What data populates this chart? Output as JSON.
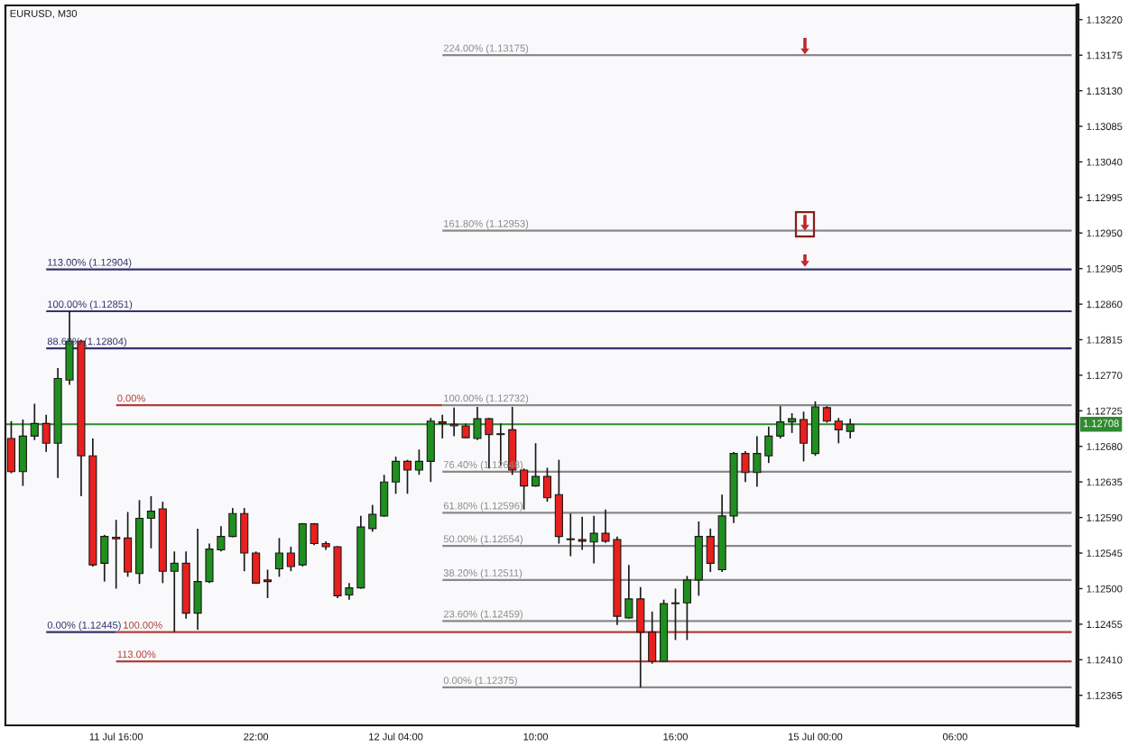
{
  "chart_data": {
    "type": "candlestick",
    "title": "EURUSD, M30",
    "categories": [
      null,
      null,
      null,
      null,
      null,
      null,
      null,
      null,
      null,
      "11 Jul 16:00",
      null,
      null,
      null,
      null,
      null,
      null,
      null,
      null,
      null,
      null,
      null,
      "22:00",
      null,
      null,
      null,
      null,
      null,
      null,
      null,
      null,
      null,
      null,
      null,
      "12 Jul 04:00",
      null,
      null,
      null,
      null,
      null,
      null,
      null,
      null,
      null,
      null,
      null,
      "10:00",
      null,
      null,
      null,
      null,
      null,
      null,
      null,
      null,
      null,
      null,
      null,
      "16:00",
      null,
      null,
      null,
      null,
      null,
      null,
      null,
      null,
      null,
      null,
      null,
      "15 Jul 00:00",
      null,
      null,
      null,
      null,
      null,
      null,
      null,
      null,
      null,
      null,
      null,
      "06:00",
      null,
      null,
      null,
      null,
      null,
      null,
      null,
      null,
      null,
      null
    ],
    "ohlc": [
      [
        1.1269,
        1.12712,
        1.12646,
        1.12648
      ],
      [
        1.12648,
        1.12714,
        1.1263,
        1.12693
      ],
      [
        1.12693,
        1.12734,
        1.12688,
        1.12709
      ],
      [
        1.12709,
        1.1272,
        1.12673,
        1.12684
      ],
      [
        1.12684,
        1.12779,
        1.1264,
        1.12766
      ],
      [
        1.12764,
        1.12851,
        1.12758,
        1.12813
      ],
      [
        1.12813,
        1.12815,
        1.12617,
        1.12668
      ],
      [
        1.12668,
        1.1269,
        1.12528,
        1.1253
      ],
      [
        1.12532,
        1.12568,
        1.12509,
        1.12566
      ],
      [
        1.12565,
        1.12587,
        1.125,
        1.12563
      ],
      [
        1.12564,
        1.12597,
        1.12515,
        1.12521
      ],
      [
        1.12519,
        1.12612,
        1.12506,
        1.12589
      ],
      [
        1.12589,
        1.12617,
        1.12551,
        1.12598
      ],
      [
        1.12601,
        1.1261,
        1.12507,
        1.12522
      ],
      [
        1.12522,
        1.12547,
        1.12445,
        1.12532
      ],
      [
        1.12532,
        1.12547,
        1.12462,
        1.12469
      ],
      [
        1.12469,
        1.12576,
        1.12448,
        1.12509
      ],
      [
        1.12509,
        1.12557,
        1.12507,
        1.1255
      ],
      [
        1.12549,
        1.12579,
        1.12547,
        1.12566
      ],
      [
        1.12566,
        1.12602,
        1.12565,
        1.12595
      ],
      [
        1.12595,
        1.12602,
        1.12522,
        1.12545
      ],
      [
        1.12545,
        1.12547,
        1.12506,
        1.12507
      ],
      [
        1.12511,
        1.12524,
        1.12488,
        1.12509
      ],
      [
        1.12525,
        1.12564,
        1.12515,
        1.12545
      ],
      [
        1.12545,
        1.12553,
        1.12522,
        1.12528
      ],
      [
        1.1253,
        1.12583,
        1.12528,
        1.12582
      ],
      [
        1.12582,
        1.12583,
        1.12555,
        1.12557
      ],
      [
        1.12557,
        1.1256,
        1.12549,
        1.12553
      ],
      [
        1.12553,
        1.12554,
        1.12488,
        1.12491
      ],
      [
        1.12492,
        1.12507,
        1.12486,
        1.12501
      ],
      [
        1.12501,
        1.12592,
        1.125,
        1.12578
      ],
      [
        1.12576,
        1.12606,
        1.12572,
        1.12594
      ],
      [
        1.12592,
        1.12644,
        1.12591,
        1.12635
      ],
      [
        1.12635,
        1.12667,
        1.1262,
        1.12661
      ],
      [
        1.12661,
        1.12663,
        1.1262,
        1.1265
      ],
      [
        1.1265,
        1.12676,
        1.12644,
        1.12661
      ],
      [
        1.12661,
        1.12716,
        1.12635,
        1.12712
      ],
      [
        1.12711,
        1.1272,
        1.1269,
        1.12709
      ],
      [
        1.12708,
        1.12729,
        1.12693,
        1.12706
      ],
      [
        1.12706,
        1.12709,
        1.1269,
        1.12691
      ],
      [
        1.1269,
        1.1273,
        1.12688,
        1.12715
      ],
      [
        1.12715,
        1.12716,
        1.12652,
        1.12695
      ],
      [
        1.12696,
        1.12709,
        1.12655,
        1.12695
      ],
      [
        1.12701,
        1.1273,
        1.12644,
        1.1265
      ],
      [
        1.1265,
        1.12652,
        1.126,
        1.1263
      ],
      [
        1.1263,
        1.12684,
        1.12629,
        1.12642
      ],
      [
        1.12642,
        1.12653,
        1.1261,
        1.12615
      ],
      [
        1.12619,
        1.12663,
        1.12557,
        1.12566
      ],
      [
        1.12563,
        1.12595,
        1.12541,
        1.12562
      ],
      [
        1.12562,
        1.12591,
        1.12549,
        1.1256
      ],
      [
        1.12559,
        1.12592,
        1.12532,
        1.1257
      ],
      [
        1.1257,
        1.126,
        1.12558,
        1.1256
      ],
      [
        1.12562,
        1.12566,
        1.12454,
        1.12465
      ],
      [
        1.12463,
        1.1253,
        1.12462,
        1.12487
      ],
      [
        1.12487,
        1.12502,
        1.12375,
        1.12445
      ],
      [
        1.12445,
        1.12471,
        1.12405,
        1.12408
      ],
      [
        1.12408,
        1.12486,
        1.12407,
        1.12481
      ],
      [
        1.12482,
        1.125,
        1.12435,
        1.12481
      ],
      [
        1.12482,
        1.12516,
        1.12435,
        1.12511
      ],
      [
        1.12511,
        1.12585,
        1.12491,
        1.12566
      ],
      [
        1.12566,
        1.12576,
        1.12521,
        1.12532
      ],
      [
        1.12524,
        1.12619,
        1.12521,
        1.12592
      ],
      [
        1.12592,
        1.12673,
        1.12583,
        1.12671
      ],
      [
        1.12671,
        1.12674,
        1.12635,
        1.12647
      ],
      [
        1.12647,
        1.12693,
        1.12629,
        1.12671
      ],
      [
        1.12668,
        1.12705,
        1.12659,
        1.12693
      ],
      [
        1.12693,
        1.12731,
        1.1269,
        1.12711
      ],
      [
        1.12711,
        1.12722,
        1.12697,
        1.12715
      ],
      [
        1.12714,
        1.12724,
        1.12661,
        1.12684
      ],
      [
        1.12671,
        1.12737,
        1.12668,
        1.1273
      ],
      [
        1.12729,
        1.12731,
        1.1271,
        1.12712
      ],
      [
        1.12712,
        1.12716,
        1.12684,
        1.12701
      ],
      [
        1.12699,
        1.12715,
        1.1269,
        1.12708
      ],
      null,
      null,
      null,
      null,
      null,
      null,
      null,
      null,
      null,
      null,
      null,
      null,
      null,
      null,
      null,
      null,
      null,
      null,
      null
    ],
    "colors": [
      "#e8201e",
      "#1f8f1f",
      "#1f8f1f",
      "#e8201e",
      "#1f8f1f",
      "#1f8f1f",
      "#e8201e",
      "#e8201e",
      "#1f8f1f",
      "#e8201e",
      "#e8201e",
      "#1f8f1f",
      "#1f8f1f",
      "#e8201e",
      "#1f8f1f",
      "#e8201e",
      "#1f8f1f",
      "#1f8f1f",
      "#1f8f1f",
      "#1f8f1f",
      "#e8201e",
      "#e8201e",
      "#e8201e",
      "#1f8f1f",
      "#e8201e",
      "#1f8f1f",
      "#e8201e",
      "#e8201e",
      "#e8201e",
      "#1f8f1f",
      "#1f8f1f",
      "#1f8f1f",
      "#1f8f1f",
      "#1f8f1f",
      "#e8201e",
      "#1f8f1f",
      "#1f8f1f",
      "#e8201e",
      "#e8201e",
      "#e8201e",
      "#1f8f1f",
      "#e8201e",
      "#e8201e",
      "#e8201e",
      "#e8201e",
      "#1f8f1f",
      "#e8201e",
      "#e8201e",
      "#e8201e",
      "#e8201e",
      "#1f8f1f",
      "#e8201e",
      "#e8201e",
      "#1f8f1f",
      "#e8201e",
      "#e8201e",
      "#1f8f1f",
      "#e8201e",
      "#1f8f1f",
      "#1f8f1f",
      "#e8201e",
      "#1f8f1f",
      "#1f8f1f",
      "#e8201e",
      "#1f8f1f",
      "#1f8f1f",
      "#1f8f1f",
      "#1f8f1f",
      "#e8201e",
      "#1f8f1f",
      "#e8201e",
      "#e8201e",
      "#1f8f1f",
      null,
      null,
      null,
      null,
      null,
      null,
      null,
      null,
      null,
      null,
      null,
      null,
      null,
      null,
      null,
      null,
      null,
      null,
      null
    ],
    "series": [
      {
        "type": "line",
        "name": "113.00% (1.12904)",
        "color": "#34346e",
        "values": [
          null,
          null,
          null,
          1.12904,
          1.12904,
          1.12904,
          1.12904,
          1.12904,
          1.12904,
          1.12904,
          1.12904,
          1.12904,
          1.12904,
          1.12904,
          1.12904,
          1.12904,
          1.12904,
          1.12904,
          1.12904,
          1.12904,
          1.12904,
          1.12904,
          1.12904,
          1.12904,
          1.12904,
          1.12904,
          1.12904,
          1.12904,
          1.12904,
          1.12904,
          1.12904,
          1.12904,
          1.12904,
          1.12904,
          1.12904,
          1.12904,
          1.12904,
          1.12904,
          1.12904,
          1.12904,
          1.12904,
          1.12904,
          1.12904,
          1.12904,
          1.12904,
          1.12904,
          1.12904,
          1.12904,
          1.12904,
          1.12904,
          1.12904,
          1.12904,
          1.12904,
          1.12904,
          1.12904,
          1.12904,
          1.12904,
          1.12904,
          1.12904,
          1.12904,
          1.12904,
          1.12904,
          1.12904,
          1.12904,
          1.12904,
          1.12904,
          1.12904,
          1.12904,
          1.12904,
          1.12904,
          1.12904,
          1.12904,
          1.12904,
          1.12904,
          1.12904,
          1.12904,
          1.12904,
          1.12904,
          1.12904,
          1.12904,
          1.12904,
          1.12904,
          1.12904,
          1.12904,
          1.12904,
          1.12904,
          1.12904,
          1.12904,
          1.12904,
          1.12904,
          1.12904,
          1.12904
        ]
      },
      {
        "type": "line",
        "name": "100.00% (1.12851)",
        "color": "#34346e",
        "values": [
          null,
          null,
          null,
          1.12851,
          1.12851,
          1.12851,
          1.12851,
          1.12851,
          1.12851,
          1.12851,
          1.12851,
          1.12851,
          1.12851,
          1.12851,
          1.12851,
          1.12851,
          1.12851,
          1.12851,
          1.12851,
          1.12851,
          1.12851,
          1.12851,
          1.12851,
          1.12851,
          1.12851,
          1.12851,
          1.12851,
          1.12851,
          1.12851,
          1.12851,
          1.12851,
          1.12851,
          1.12851,
          1.12851,
          1.12851,
          1.12851,
          1.12851,
          1.12851,
          1.12851,
          1.12851,
          1.12851,
          1.12851,
          1.12851,
          1.12851,
          1.12851,
          1.12851,
          1.12851,
          1.12851,
          1.12851,
          1.12851,
          1.12851,
          1.12851,
          1.12851,
          1.12851,
          1.12851,
          1.12851,
          1.12851,
          1.12851,
          1.12851,
          1.12851,
          1.12851,
          1.12851,
          1.12851,
          1.12851,
          1.12851,
          1.12851,
          1.12851,
          1.12851,
          1.12851,
          1.12851,
          1.12851,
          1.12851,
          1.12851,
          1.12851,
          1.12851,
          1.12851,
          1.12851,
          1.12851,
          1.12851,
          1.12851,
          1.12851,
          1.12851,
          1.12851,
          1.12851,
          1.12851,
          1.12851,
          1.12851,
          1.12851,
          1.12851,
          1.12851,
          1.12851,
          1.12851
        ]
      },
      {
        "type": "line",
        "name": "88.60% (1.12804)",
        "color": "#34346e",
        "values": [
          null,
          null,
          null,
          1.12804,
          1.12804,
          1.12804,
          1.12804,
          1.12804,
          1.12804,
          1.12804,
          1.12804,
          1.12804,
          1.12804,
          1.12804,
          1.12804,
          1.12804,
          1.12804,
          1.12804,
          1.12804,
          1.12804,
          1.12804,
          1.12804,
          1.12804,
          1.12804,
          1.12804,
          1.12804,
          1.12804,
          1.12804,
          1.12804,
          1.12804,
          1.12804,
          1.12804,
          1.12804,
          1.12804,
          1.12804,
          1.12804,
          1.12804,
          1.12804,
          1.12804,
          1.12804,
          1.12804,
          1.12804,
          1.12804,
          1.12804,
          1.12804,
          1.12804,
          1.12804,
          1.12804,
          1.12804,
          1.12804,
          1.12804,
          1.12804,
          1.12804,
          1.12804,
          1.12804,
          1.12804,
          1.12804,
          1.12804,
          1.12804,
          1.12804,
          1.12804,
          1.12804,
          1.12804,
          1.12804,
          1.12804,
          1.12804,
          1.12804,
          1.12804,
          1.12804,
          1.12804,
          1.12804,
          1.12804,
          1.12804,
          1.12804,
          1.12804,
          1.12804,
          1.12804,
          1.12804,
          1.12804,
          1.12804,
          1.12804,
          1.12804,
          1.12804,
          1.12804,
          1.12804,
          1.12804,
          1.12804,
          1.12804,
          1.12804,
          1.12804,
          1.12804,
          1.12804
        ]
      },
      {
        "type": "line",
        "name": "0.00% (1.12445)",
        "color": "#34346e",
        "values": [
          null,
          null,
          null,
          1.12445,
          1.12445,
          1.12445,
          1.12445,
          1.12445,
          1.12445,
          1.12445,
          null,
          null,
          null,
          null,
          null,
          null,
          null,
          null,
          null,
          null,
          null,
          null,
          null,
          null,
          null,
          null,
          null,
          null,
          null,
          null,
          null,
          null,
          null,
          null,
          null,
          null,
          null,
          null,
          null,
          null,
          null,
          null,
          null,
          null,
          null,
          null,
          null,
          null,
          null,
          null,
          null,
          null,
          null,
          null,
          null,
          null,
          null,
          null,
          null,
          null,
          null,
          null,
          null,
          null,
          null,
          null,
          null,
          null,
          null,
          null,
          null,
          null,
          null,
          null,
          null,
          null,
          null,
          null,
          null,
          null,
          null,
          null,
          null,
          null,
          null,
          null,
          null,
          null,
          null,
          null,
          null,
          null
        ]
      },
      {
        "type": "line",
        "name": "0.00%",
        "color": "#b0403c",
        "values": [
          null,
          null,
          null,
          null,
          null,
          null,
          null,
          null,
          null,
          1.12732,
          1.12732,
          1.12732,
          1.12732,
          1.12732,
          1.12732,
          1.12732,
          1.12732,
          1.12732,
          1.12732,
          1.12732,
          1.12732,
          1.12732,
          1.12732,
          1.12732,
          1.12732,
          1.12732,
          1.12732,
          1.12732,
          1.12732,
          1.12732,
          1.12732,
          1.12732,
          1.12732,
          1.12732,
          1.12732,
          1.12732,
          1.12732,
          1.12732,
          null,
          null,
          null,
          null,
          null,
          null,
          null,
          null,
          null,
          null,
          null,
          null,
          null,
          null,
          null,
          null,
          null,
          null,
          null,
          null,
          null,
          null,
          null,
          null,
          null,
          null,
          null,
          null,
          null,
          null,
          null,
          null,
          null,
          null,
          null,
          null,
          null,
          null,
          null,
          null,
          null,
          null,
          null,
          null,
          null,
          null,
          null,
          null,
          null,
          null,
          null,
          null,
          null,
          null
        ]
      },
      {
        "type": "line",
        "name": "100.00%",
        "color": "#b0403c",
        "values": [
          null,
          null,
          null,
          null,
          null,
          null,
          null,
          null,
          null,
          1.12445,
          1.12445,
          1.12445,
          1.12445,
          1.12445,
          1.12445,
          1.12445,
          1.12445,
          1.12445,
          1.12445,
          1.12445,
          1.12445,
          1.12445,
          1.12445,
          1.12445,
          1.12445,
          1.12445,
          1.12445,
          1.12445,
          1.12445,
          1.12445,
          1.12445,
          1.12445,
          1.12445,
          1.12445,
          1.12445,
          1.12445,
          1.12445,
          1.12445,
          1.12445,
          1.12445,
          1.12445,
          1.12445,
          1.12445,
          1.12445,
          1.12445,
          1.12445,
          1.12445,
          1.12445,
          1.12445,
          1.12445,
          1.12445,
          1.12445,
          1.12445,
          1.12445,
          1.12445,
          1.12445,
          1.12445,
          1.12445,
          1.12445,
          1.12445,
          1.12445,
          1.12445,
          1.12445,
          1.12445,
          1.12445,
          1.12445,
          1.12445,
          1.12445,
          1.12445,
          1.12445,
          1.12445,
          1.12445,
          1.12445,
          1.12445,
          1.12445,
          1.12445,
          1.12445,
          1.12445,
          1.12445,
          1.12445,
          1.12445,
          1.12445,
          1.12445,
          1.12445,
          1.12445,
          1.12445,
          1.12445,
          1.12445,
          1.12445,
          1.12445,
          1.12445,
          1.12445
        ]
      },
      {
        "type": "line",
        "name": "113.00%",
        "color": "#b0403c",
        "values": [
          null,
          null,
          null,
          null,
          null,
          null,
          null,
          null,
          null,
          1.12408,
          1.12408,
          1.12408,
          1.12408,
          1.12408,
          1.12408,
          1.12408,
          1.12408,
          1.12408,
          1.12408,
          1.12408,
          1.12408,
          1.12408,
          1.12408,
          1.12408,
          1.12408,
          1.12408,
          1.12408,
          1.12408,
          1.12408,
          1.12408,
          1.12408,
          1.12408,
          1.12408,
          1.12408,
          1.12408,
          1.12408,
          1.12408,
          1.12408,
          1.12408,
          1.12408,
          1.12408,
          1.12408,
          1.12408,
          1.12408,
          1.12408,
          1.12408,
          1.12408,
          1.12408,
          1.12408,
          1.12408,
          1.12408,
          1.12408,
          1.12408,
          1.12408,
          1.12408,
          1.12408,
          1.12408,
          1.12408,
          1.12408,
          1.12408,
          1.12408,
          1.12408,
          1.12408,
          1.12408,
          1.12408,
          1.12408,
          1.12408,
          1.12408,
          1.12408,
          1.12408,
          1.12408,
          1.12408,
          1.12408,
          1.12408,
          1.12408,
          1.12408,
          1.12408,
          1.12408,
          1.12408,
          1.12408,
          1.12408,
          1.12408,
          1.12408,
          1.12408,
          1.12408,
          1.12408,
          1.12408,
          1.12408,
          1.12408,
          1.12408,
          1.12408,
          1.12408
        ]
      },
      {
        "type": "line",
        "name": "224.00% (1.13175)",
        "color": "#8a8a8a",
        "values": [
          null,
          null,
          null,
          null,
          null,
          null,
          null,
          null,
          null,
          null,
          null,
          null,
          null,
          null,
          null,
          null,
          null,
          null,
          null,
          null,
          null,
          null,
          null,
          null,
          null,
          null,
          null,
          null,
          null,
          null,
          null,
          null,
          null,
          null,
          null,
          null,
          null,
          1.13175,
          1.13175,
          1.13175,
          1.13175,
          1.13175,
          1.13175,
          1.13175,
          1.13175,
          1.13175,
          1.13175,
          1.13175,
          1.13175,
          1.13175,
          1.13175,
          1.13175,
          1.13175,
          1.13175,
          1.13175,
          1.13175,
          1.13175,
          1.13175,
          1.13175,
          1.13175,
          1.13175,
          1.13175,
          1.13175,
          1.13175,
          1.13175,
          1.13175,
          1.13175,
          1.13175,
          1.13175,
          1.13175,
          1.13175,
          1.13175,
          1.13175,
          1.13175,
          1.13175,
          1.13175,
          1.13175,
          1.13175,
          1.13175,
          1.13175,
          1.13175,
          1.13175,
          1.13175,
          1.13175,
          1.13175,
          1.13175,
          1.13175,
          1.13175,
          1.13175,
          1.13175,
          1.13175,
          1.13175
        ]
      },
      {
        "type": "line",
        "name": "161.80% (1.12953)",
        "color": "#8a8a8a",
        "values": [
          null,
          null,
          null,
          null,
          null,
          null,
          null,
          null,
          null,
          null,
          null,
          null,
          null,
          null,
          null,
          null,
          null,
          null,
          null,
          null,
          null,
          null,
          null,
          null,
          null,
          null,
          null,
          null,
          null,
          null,
          null,
          null,
          null,
          null,
          null,
          null,
          null,
          1.12953,
          1.12953,
          1.12953,
          1.12953,
          1.12953,
          1.12953,
          1.12953,
          1.12953,
          1.12953,
          1.12953,
          1.12953,
          1.12953,
          1.12953,
          1.12953,
          1.12953,
          1.12953,
          1.12953,
          1.12953,
          1.12953,
          1.12953,
          1.12953,
          1.12953,
          1.12953,
          1.12953,
          1.12953,
          1.12953,
          1.12953,
          1.12953,
          1.12953,
          1.12953,
          1.12953,
          1.12953,
          1.12953,
          1.12953,
          1.12953,
          1.12953,
          1.12953,
          1.12953,
          1.12953,
          1.12953,
          1.12953,
          1.12953,
          1.12953,
          1.12953,
          1.12953,
          1.12953,
          1.12953,
          1.12953,
          1.12953,
          1.12953,
          1.12953,
          1.12953,
          1.12953,
          1.12953,
          1.12953
        ]
      },
      {
        "type": "line",
        "name": "100.00% (1.12732)",
        "color": "#8a8a8a",
        "values": [
          null,
          null,
          null,
          null,
          null,
          null,
          null,
          null,
          null,
          null,
          null,
          null,
          null,
          null,
          null,
          null,
          null,
          null,
          null,
          null,
          null,
          null,
          null,
          null,
          null,
          null,
          null,
          null,
          null,
          null,
          null,
          null,
          null,
          null,
          null,
          null,
          null,
          1.12732,
          1.12732,
          1.12732,
          1.12732,
          1.12732,
          1.12732,
          1.12732,
          1.12732,
          1.12732,
          1.12732,
          1.12732,
          1.12732,
          1.12732,
          1.12732,
          1.12732,
          1.12732,
          1.12732,
          1.12732,
          1.12732,
          1.12732,
          1.12732,
          1.12732,
          1.12732,
          1.12732,
          1.12732,
          1.12732,
          1.12732,
          1.12732,
          1.12732,
          1.12732,
          1.12732,
          1.12732,
          1.12732,
          1.12732,
          1.12732,
          1.12732,
          1.12732,
          1.12732,
          1.12732,
          1.12732,
          1.12732,
          1.12732,
          1.12732,
          1.12732,
          1.12732,
          1.12732,
          1.12732,
          1.12732,
          1.12732,
          1.12732,
          1.12732,
          1.12732,
          1.12732,
          1.12732,
          1.12732
        ]
      },
      {
        "type": "line",
        "name": "76.40% (1.12648)",
        "color": "#8a8a8a",
        "values": [
          null,
          null,
          null,
          null,
          null,
          null,
          null,
          null,
          null,
          null,
          null,
          null,
          null,
          null,
          null,
          null,
          null,
          null,
          null,
          null,
          null,
          null,
          null,
          null,
          null,
          null,
          null,
          null,
          null,
          null,
          null,
          null,
          null,
          null,
          null,
          null,
          null,
          1.12648,
          1.12648,
          1.12648,
          1.12648,
          1.12648,
          1.12648,
          1.12648,
          1.12648,
          1.12648,
          1.12648,
          1.12648,
          1.12648,
          1.12648,
          1.12648,
          1.12648,
          1.12648,
          1.12648,
          1.12648,
          1.12648,
          1.12648,
          1.12648,
          1.12648,
          1.12648,
          1.12648,
          1.12648,
          1.12648,
          1.12648,
          1.12648,
          1.12648,
          1.12648,
          1.12648,
          1.12648,
          1.12648,
          1.12648,
          1.12648,
          1.12648,
          1.12648,
          1.12648,
          1.12648,
          1.12648,
          1.12648,
          1.12648,
          1.12648,
          1.12648,
          1.12648,
          1.12648,
          1.12648,
          1.12648,
          1.12648,
          1.12648,
          1.12648,
          1.12648,
          1.12648,
          1.12648,
          1.12648
        ]
      },
      {
        "type": "line",
        "name": "61.80% (1.12596)",
        "color": "#8a8a8a",
        "values": [
          null,
          null,
          null,
          null,
          null,
          null,
          null,
          null,
          null,
          null,
          null,
          null,
          null,
          null,
          null,
          null,
          null,
          null,
          null,
          null,
          null,
          null,
          null,
          null,
          null,
          null,
          null,
          null,
          null,
          null,
          null,
          null,
          null,
          null,
          null,
          null,
          null,
          1.12596,
          1.12596,
          1.12596,
          1.12596,
          1.12596,
          1.12596,
          1.12596,
          1.12596,
          1.12596,
          1.12596,
          1.12596,
          1.12596,
          1.12596,
          1.12596,
          1.12596,
          1.12596,
          1.12596,
          1.12596,
          1.12596,
          1.12596,
          1.12596,
          1.12596,
          1.12596,
          1.12596,
          1.12596,
          1.12596,
          1.12596,
          1.12596,
          1.12596,
          1.12596,
          1.12596,
          1.12596,
          1.12596,
          1.12596,
          1.12596,
          1.12596,
          1.12596,
          1.12596,
          1.12596,
          1.12596,
          1.12596,
          1.12596,
          1.12596,
          1.12596,
          1.12596,
          1.12596,
          1.12596,
          1.12596,
          1.12596,
          1.12596,
          1.12596,
          1.12596,
          1.12596,
          1.12596,
          1.12596
        ]
      },
      {
        "type": "line",
        "name": "50.00% (1.12554)",
        "color": "#8a8a8a",
        "values": [
          null,
          null,
          null,
          null,
          null,
          null,
          null,
          null,
          null,
          null,
          null,
          null,
          null,
          null,
          null,
          null,
          null,
          null,
          null,
          null,
          null,
          null,
          null,
          null,
          null,
          null,
          null,
          null,
          null,
          null,
          null,
          null,
          null,
          null,
          null,
          null,
          null,
          1.12554,
          1.12554,
          1.12554,
          1.12554,
          1.12554,
          1.12554,
          1.12554,
          1.12554,
          1.12554,
          1.12554,
          1.12554,
          1.12554,
          1.12554,
          1.12554,
          1.12554,
          1.12554,
          1.12554,
          1.12554,
          1.12554,
          1.12554,
          1.12554,
          1.12554,
          1.12554,
          1.12554,
          1.12554,
          1.12554,
          1.12554,
          1.12554,
          1.12554,
          1.12554,
          1.12554,
          1.12554,
          1.12554,
          1.12554,
          1.12554,
          1.12554,
          1.12554,
          1.12554,
          1.12554,
          1.12554,
          1.12554,
          1.12554,
          1.12554,
          1.12554,
          1.12554,
          1.12554,
          1.12554,
          1.12554,
          1.12554,
          1.12554,
          1.12554,
          1.12554,
          1.12554,
          1.12554,
          1.12554
        ]
      },
      {
        "type": "line",
        "name": "38.20% (1.12511)",
        "color": "#8a8a8a",
        "values": [
          null,
          null,
          null,
          null,
          null,
          null,
          null,
          null,
          null,
          null,
          null,
          null,
          null,
          null,
          null,
          null,
          null,
          null,
          null,
          null,
          null,
          null,
          null,
          null,
          null,
          null,
          null,
          null,
          null,
          null,
          null,
          null,
          null,
          null,
          null,
          null,
          null,
          1.12511,
          1.12511,
          1.12511,
          1.12511,
          1.12511,
          1.12511,
          1.12511,
          1.12511,
          1.12511,
          1.12511,
          1.12511,
          1.12511,
          1.12511,
          1.12511,
          1.12511,
          1.12511,
          1.12511,
          1.12511,
          1.12511,
          1.12511,
          1.12511,
          1.12511,
          1.12511,
          1.12511,
          1.12511,
          1.12511,
          1.12511,
          1.12511,
          1.12511,
          1.12511,
          1.12511,
          1.12511,
          1.12511,
          1.12511,
          1.12511,
          1.12511,
          1.12511,
          1.12511,
          1.12511,
          1.12511,
          1.12511,
          1.12511,
          1.12511,
          1.12511,
          1.12511,
          1.12511,
          1.12511,
          1.12511,
          1.12511,
          1.12511,
          1.12511,
          1.12511,
          1.12511,
          1.12511,
          1.12511
        ]
      },
      {
        "type": "line",
        "name": "23.60% (1.12459)",
        "color": "#8a8a8a",
        "values": [
          null,
          null,
          null,
          null,
          null,
          null,
          null,
          null,
          null,
          null,
          null,
          null,
          null,
          null,
          null,
          null,
          null,
          null,
          null,
          null,
          null,
          null,
          null,
          null,
          null,
          null,
          null,
          null,
          null,
          null,
          null,
          null,
          null,
          null,
          null,
          null,
          null,
          1.12459,
          1.12459,
          1.12459,
          1.12459,
          1.12459,
          1.12459,
          1.12459,
          1.12459,
          1.12459,
          1.12459,
          1.12459,
          1.12459,
          1.12459,
          1.12459,
          1.12459,
          1.12459,
          1.12459,
          1.12459,
          1.12459,
          1.12459,
          1.12459,
          1.12459,
          1.12459,
          1.12459,
          1.12459,
          1.12459,
          1.12459,
          1.12459,
          1.12459,
          1.12459,
          1.12459,
          1.12459,
          1.12459,
          1.12459,
          1.12459,
          1.12459,
          1.12459,
          1.12459,
          1.12459,
          1.12459,
          1.12459,
          1.12459,
          1.12459,
          1.12459,
          1.12459,
          1.12459,
          1.12459,
          1.12459,
          1.12459,
          1.12459,
          1.12459,
          1.12459,
          1.12459,
          1.12459,
          1.12459
        ]
      },
      {
        "type": "line",
        "name": "0.00% (1.12375)",
        "color": "#8a8a8a",
        "values": [
          null,
          null,
          null,
          null,
          null,
          null,
          null,
          null,
          null,
          null,
          null,
          null,
          null,
          null,
          null,
          null,
          null,
          null,
          null,
          null,
          null,
          null,
          null,
          null,
          null,
          null,
          null,
          null,
          null,
          null,
          null,
          null,
          null,
          null,
          null,
          null,
          null,
          1.12375,
          1.12375,
          1.12375,
          1.12375,
          1.12375,
          1.12375,
          1.12375,
          1.12375,
          1.12375,
          1.12375,
          1.12375,
          1.12375,
          1.12375,
          1.12375,
          1.12375,
          1.12375,
          1.12375,
          1.12375,
          1.12375,
          1.12375,
          1.12375,
          1.12375,
          1.12375,
          1.12375,
          1.12375,
          1.12375,
          1.12375,
          1.12375,
          1.12375,
          1.12375,
          1.12375,
          1.12375,
          1.12375,
          1.12375,
          1.12375,
          1.12375,
          1.12375,
          1.12375,
          1.12375,
          1.12375,
          1.12375,
          1.12375,
          1.12375,
          1.12375,
          1.12375,
          1.12375,
          1.12375,
          1.12375,
          1.12375,
          1.12375,
          1.12375,
          1.12375,
          1.12375,
          1.12375,
          1.12375
        ]
      }
    ],
    "ref_lines": [
      {
        "axis": "y",
        "value": 1.12708,
        "label": "1.12708",
        "color": "#2f8a2f"
      }
    ],
    "ylim": [
      1.12327,
      1.13238
    ],
    "yticks": [
      1.12365,
      {
        "value": 1.1241,
        "label": "1.12410"
      },
      1.12455,
      {
        "value": 1.125,
        "label": "1.12500"
      },
      1.12545,
      {
        "value": 1.1259,
        "label": "1.12590"
      },
      1.12635,
      {
        "value": 1.1268,
        "label": "1.12680"
      },
      1.12725,
      {
        "value": 1.1277,
        "label": "1.12770"
      },
      1.12815,
      {
        "value": 1.1286,
        "label": "1.12860"
      },
      1.12905,
      {
        "value": 1.1295,
        "label": "1.12950"
      },
      1.12995,
      {
        "value": 1.1304,
        "label": "1.13040"
      },
      1.13085,
      {
        "value": 1.1313,
        "label": "1.13130"
      },
      1.13175,
      {
        "value": 1.1322,
        "label": "1.13220"
      }
    ]
  }
}
